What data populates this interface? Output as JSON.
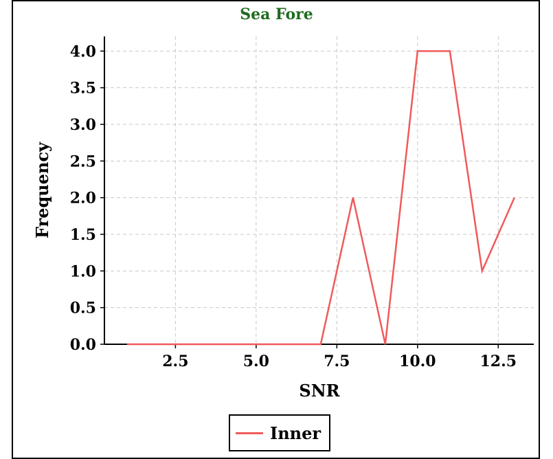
{
  "chart_data": {
    "type": "line",
    "title": "Sea Fore",
    "xlabel": "SNR",
    "ylabel": "Frequency",
    "xlim": [
      0.3,
      13.6
    ],
    "ylim": [
      0,
      4.2
    ],
    "xticks": [
      2.5,
      5.0,
      7.5,
      10.0,
      12.5
    ],
    "xtick_labels": [
      "2.5",
      "5.0",
      "7.5",
      "10.0",
      "12.5"
    ],
    "yticks": [
      0.0,
      0.5,
      1.0,
      1.5,
      2.0,
      2.5,
      3.0,
      3.5,
      4.0
    ],
    "ytick_labels": [
      "0.0",
      "0.5",
      "1.0",
      "1.5",
      "2.0",
      "2.5",
      "3.0",
      "3.5",
      "4.0"
    ],
    "grid": true,
    "legend_position": "bottom-center",
    "series": [
      {
        "name": "Inner",
        "color": "#f05a5a",
        "x": [
          1,
          2,
          3,
          4,
          5,
          6,
          7,
          8,
          9,
          10,
          11,
          12,
          13
        ],
        "y": [
          0,
          0,
          0,
          0,
          0,
          0,
          0,
          2,
          0,
          4,
          4,
          1,
          2
        ]
      }
    ]
  }
}
